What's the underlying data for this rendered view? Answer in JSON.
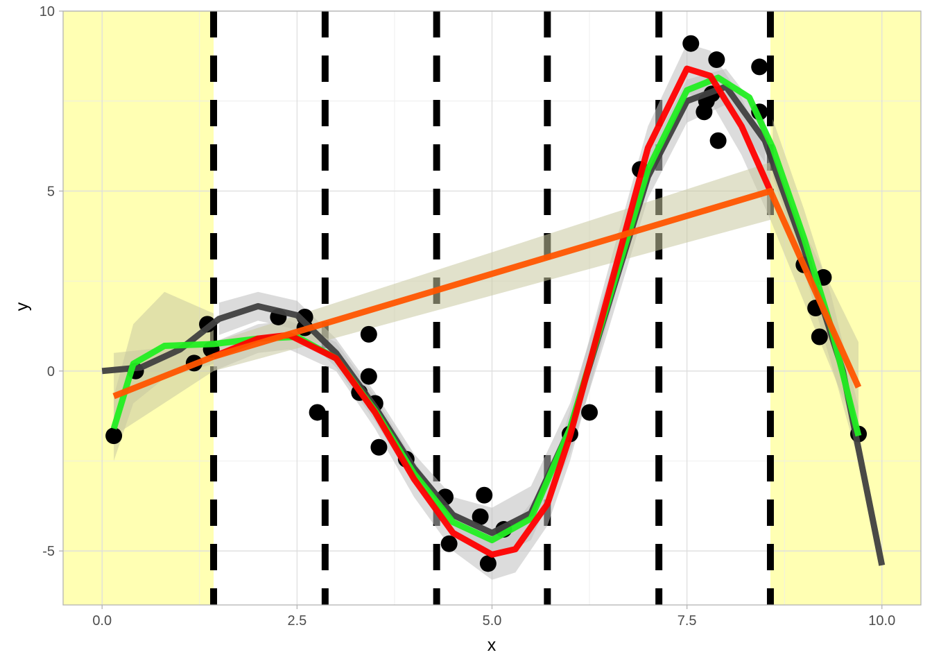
{
  "chart_data": {
    "type": "scatter",
    "xlabel": "x",
    "ylabel": "y",
    "xlim": [
      -0.5,
      10.5
    ],
    "ylim": [
      -6.5,
      10
    ],
    "x_ticks": [
      0.0,
      2.5,
      5.0,
      7.5,
      10.0
    ],
    "x_tick_labels": [
      "0.0",
      "2.5",
      "5.0",
      "7.5",
      "10.0"
    ],
    "y_ticks": [
      -5,
      0,
      5,
      10
    ],
    "y_tick_labels": [
      "-5",
      "0",
      "5",
      "10"
    ],
    "grid": true,
    "highlight_regions": [
      {
        "x0": -0.5,
        "x1": 1.43,
        "color": "#FFFFB3"
      },
      {
        "x0": 8.57,
        "x1": 10.5,
        "color": "#FFFFB3"
      }
    ],
    "knots": [
      1.43,
      2.86,
      4.29,
      5.71,
      7.14,
      8.57
    ],
    "points": [
      {
        "x": 0.15,
        "y": -1.8
      },
      {
        "x": 0.43,
        "y": 0.0
      },
      {
        "x": 1.18,
        "y": 0.22
      },
      {
        "x": 1.35,
        "y": 1.3
      },
      {
        "x": 1.4,
        "y": 0.6
      },
      {
        "x": 2.26,
        "y": 1.5
      },
      {
        "x": 2.6,
        "y": 1.5
      },
      {
        "x": 2.6,
        "y": 1.2
      },
      {
        "x": 2.76,
        "y": -1.15
      },
      {
        "x": 3.3,
        "y": -0.6
      },
      {
        "x": 3.42,
        "y": 1.02
      },
      {
        "x": 3.42,
        "y": -0.15
      },
      {
        "x": 3.5,
        "y": -0.9
      },
      {
        "x": 3.55,
        "y": -2.12
      },
      {
        "x": 3.9,
        "y": -2.45
      },
      {
        "x": 4.4,
        "y": -3.5
      },
      {
        "x": 4.45,
        "y": -4.8
      },
      {
        "x": 4.85,
        "y": -4.05
      },
      {
        "x": 4.9,
        "y": -3.45
      },
      {
        "x": 4.95,
        "y": -5.35
      },
      {
        "x": 5.15,
        "y": -4.4
      },
      {
        "x": 6.0,
        "y": -1.75
      },
      {
        "x": 6.25,
        "y": -1.15
      },
      {
        "x": 6.9,
        "y": 5.6
      },
      {
        "x": 7.55,
        "y": 9.1
      },
      {
        "x": 7.72,
        "y": 7.2
      },
      {
        "x": 7.75,
        "y": 7.5
      },
      {
        "x": 7.82,
        "y": 7.7
      },
      {
        "x": 7.88,
        "y": 8.65
      },
      {
        "x": 7.9,
        "y": 6.4
      },
      {
        "x": 8.43,
        "y": 8.45
      },
      {
        "x": 8.43,
        "y": 7.2
      },
      {
        "x": 9.0,
        "y": 2.95
      },
      {
        "x": 9.15,
        "y": 1.75
      },
      {
        "x": 9.2,
        "y": 0.95
      },
      {
        "x": 9.25,
        "y": 2.6
      },
      {
        "x": 9.7,
        "y": -1.75
      }
    ],
    "series": [
      {
        "color": "#404040",
        "band_color": "#BDBDBD",
        "x": [
          0.0,
          0.5,
          1.0,
          1.5,
          2.0,
          2.5,
          3.0,
          3.5,
          4.0,
          4.5,
          5.0,
          5.5,
          6.0,
          6.5,
          7.0,
          7.5,
          8.0,
          8.5,
          9.0,
          9.5,
          10.0
        ],
        "y": [
          0.0,
          0.1,
          0.6,
          1.45,
          1.8,
          1.55,
          0.5,
          -1.0,
          -2.7,
          -4.0,
          -4.5,
          -3.95,
          -1.6,
          1.9,
          5.4,
          7.5,
          7.9,
          6.4,
          3.4,
          0.0,
          -5.4
        ],
        "band_lower": [
          null,
          null,
          null,
          1.0,
          1.4,
          1.15,
          0.1,
          -1.4,
          -3.1,
          -4.5,
          -5.2,
          -4.7,
          -2.3,
          1.2,
          4.8,
          6.9,
          7.4,
          5.8,
          null,
          null,
          null
        ],
        "band_upper": [
          null,
          null,
          null,
          1.9,
          2.2,
          1.95,
          0.9,
          -0.6,
          -2.3,
          -3.5,
          -3.8,
          -3.2,
          -0.9,
          2.6,
          6.0,
          8.1,
          8.4,
          7.0,
          null,
          null,
          null
        ]
      },
      {
        "color": "#22EE22",
        "band_color": "#C8C8A0",
        "x": [
          0.15,
          0.4,
          0.8,
          1.43,
          2.0,
          2.5,
          3.0,
          3.5,
          4.0,
          4.5,
          5.0,
          5.5,
          6.0,
          6.5,
          7.0,
          7.5,
          7.9,
          8.3,
          8.6,
          9.0,
          9.35,
          9.7
        ],
        "y": [
          -1.6,
          0.2,
          0.7,
          0.75,
          0.9,
          0.95,
          0.35,
          -1.1,
          -2.85,
          -4.2,
          -4.7,
          -4.1,
          -1.6,
          2.0,
          5.6,
          7.8,
          8.15,
          7.6,
          6.2,
          3.7,
          1.2,
          -1.8
        ],
        "band_lower": [
          -2.5,
          -0.9,
          -0.2,
          0.2,
          null,
          null,
          null,
          null,
          null,
          null,
          null,
          null,
          null,
          null,
          null,
          null,
          null,
          null,
          5.4,
          2.8,
          0.2,
          -2.5
        ],
        "band_upper": [
          -0.7,
          1.3,
          2.2,
          1.6,
          null,
          null,
          null,
          null,
          null,
          null,
          null,
          null,
          null,
          null,
          null,
          null,
          null,
          null,
          7.0,
          4.5,
          2.1,
          -1.0
        ]
      },
      {
        "color": "#FF0000",
        "band_color": "#C0C0C0",
        "x": [
          1.43,
          2.0,
          2.4,
          3.0,
          3.5,
          4.0,
          4.5,
          5.0,
          5.3,
          5.71,
          6.0,
          6.5,
          7.0,
          7.5,
          7.8,
          8.2,
          8.57
        ],
        "y": [
          0.4,
          0.9,
          1.0,
          0.35,
          -1.15,
          -3.0,
          -4.5,
          -5.1,
          -4.95,
          -3.7,
          -1.8,
          2.2,
          6.2,
          8.4,
          8.2,
          6.8,
          5.0
        ],
        "band_lower": [
          0.0,
          0.5,
          0.6,
          0.0,
          -1.6,
          -3.5,
          -5.0,
          -5.8,
          -5.6,
          -4.3,
          -2.5,
          1.5,
          5.6,
          7.7,
          7.5,
          6.0,
          4.2
        ],
        "band_upper": [
          0.8,
          1.3,
          1.4,
          0.8,
          -0.7,
          -2.5,
          -4.0,
          -4.4,
          -4.2,
          -3.1,
          -1.1,
          2.9,
          6.8,
          9.1,
          8.9,
          7.6,
          5.8
        ]
      },
      {
        "color": "#FF5500",
        "band_color": "#C8C8A0",
        "x": [
          0.15,
          1.43,
          8.57,
          9.7
        ],
        "y": [
          -0.7,
          0.4,
          5.0,
          -0.45
        ],
        "band_lower": [
          -1.8,
          0.0,
          4.2,
          -1.8
        ],
        "band_upper": [
          0.5,
          0.8,
          5.8,
          0.8
        ]
      }
    ]
  }
}
